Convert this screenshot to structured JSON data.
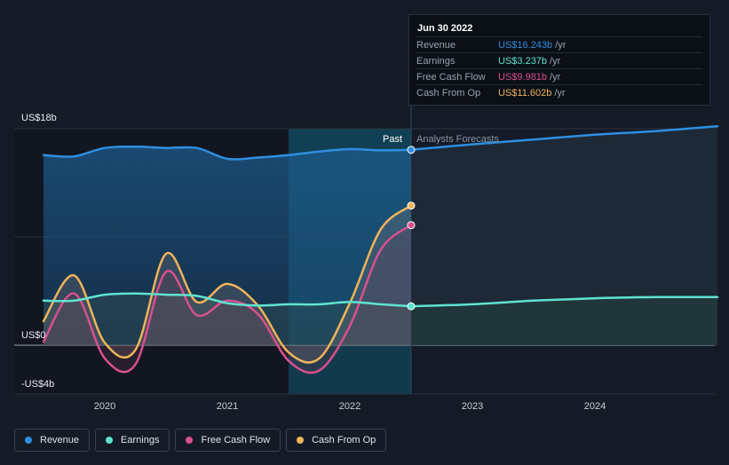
{
  "colors": {
    "revenue": "#2e8fe0",
    "earnings": "#5fe3d0",
    "free_cash_flow": "#d9508f",
    "cash_from_op": "#f0b45a",
    "background": "#151b26"
  },
  "tooltip": {
    "date": "Jun 30 2022",
    "rows": [
      {
        "name": "Revenue",
        "value": "US$16.243b",
        "unit": "/yr",
        "color": "#2e8fe0"
      },
      {
        "name": "Earnings",
        "value": "US$3.237b",
        "unit": "/yr",
        "color": "#5fe3d0"
      },
      {
        "name": "Free Cash Flow",
        "value": "US$9.981b",
        "unit": "/yr",
        "color": "#d9508f"
      },
      {
        "name": "Cash From Op",
        "value": "US$11.602b",
        "unit": "/yr",
        "color": "#f0b45a"
      }
    ]
  },
  "legend": [
    {
      "label": "Revenue",
      "color": "#2e8fe0"
    },
    {
      "label": "Earnings",
      "color": "#5fe3d0"
    },
    {
      "label": "Free Cash Flow",
      "color": "#d9508f"
    },
    {
      "label": "Cash From Op",
      "color": "#f0b45a"
    }
  ],
  "chart_data": {
    "type": "line",
    "y_tick_labels": [
      "US$18b",
      "US$0",
      "-US$4b"
    ],
    "ylim": [
      -4,
      18
    ],
    "xlim": [
      2019.5,
      2025
    ],
    "x_tick_labels": [
      "2020",
      "2021",
      "2022",
      "2023",
      "2024"
    ],
    "x_ticks": [
      2020,
      2021,
      2022,
      2023,
      2024
    ],
    "past_label": "Past",
    "forecast_label": "Analysts Forecasts",
    "divider_x": 2022.5,
    "highlight_range": [
      2021.5,
      2022.5
    ],
    "grid": "horizontal",
    "series": [
      {
        "name": "Revenue",
        "key": "revenue",
        "points": [
          [
            2019.5,
            15.8
          ],
          [
            2019.75,
            15.7
          ],
          [
            2020.0,
            16.4
          ],
          [
            2020.25,
            16.5
          ],
          [
            2020.5,
            16.4
          ],
          [
            2020.75,
            16.4
          ],
          [
            2021.0,
            15.5
          ],
          [
            2021.25,
            15.6
          ],
          [
            2021.5,
            15.8
          ],
          [
            2021.75,
            16.1
          ],
          [
            2022.0,
            16.3
          ],
          [
            2022.25,
            16.2
          ],
          [
            2022.5,
            16.243
          ]
        ],
        "forecast": [
          [
            2022.5,
            16.243
          ],
          [
            2023.0,
            16.7
          ],
          [
            2023.5,
            17.1
          ],
          [
            2024.0,
            17.5
          ],
          [
            2024.5,
            17.8
          ],
          [
            2025.0,
            18.2
          ]
        ]
      },
      {
        "name": "Earnings",
        "key": "earnings",
        "points": [
          [
            2019.5,
            3.7
          ],
          [
            2019.75,
            3.7
          ],
          [
            2020.0,
            4.2
          ],
          [
            2020.25,
            4.3
          ],
          [
            2020.5,
            4.2
          ],
          [
            2020.75,
            4.1
          ],
          [
            2021.0,
            3.5
          ],
          [
            2021.25,
            3.3
          ],
          [
            2021.5,
            3.4
          ],
          [
            2021.75,
            3.4
          ],
          [
            2022.0,
            3.6
          ],
          [
            2022.25,
            3.4
          ],
          [
            2022.5,
            3.237
          ]
        ],
        "forecast": [
          [
            2022.5,
            3.237
          ],
          [
            2023.0,
            3.4
          ],
          [
            2023.5,
            3.7
          ],
          [
            2024.0,
            3.9
          ],
          [
            2024.5,
            4.0
          ],
          [
            2025.0,
            4.0
          ]
        ]
      },
      {
        "name": "Free Cash Flow",
        "key": "free_cash_flow",
        "points": [
          [
            2019.5,
            0.3
          ],
          [
            2019.75,
            4.3
          ],
          [
            2020.0,
            -1.1
          ],
          [
            2020.25,
            -1.6
          ],
          [
            2020.5,
            6.1
          ],
          [
            2020.75,
            2.5
          ],
          [
            2021.0,
            3.7
          ],
          [
            2021.25,
            2.6
          ],
          [
            2021.5,
            -1.3
          ],
          [
            2021.75,
            -2.1
          ],
          [
            2022.0,
            1.6
          ],
          [
            2022.25,
            7.9
          ],
          [
            2022.5,
            9.981
          ]
        ]
      },
      {
        "name": "Cash From Op",
        "key": "cash_from_op",
        "points": [
          [
            2019.5,
            2.0
          ],
          [
            2019.75,
            5.8
          ],
          [
            2020.0,
            0.2
          ],
          [
            2020.25,
            -0.4
          ],
          [
            2020.5,
            7.6
          ],
          [
            2020.75,
            3.6
          ],
          [
            2021.0,
            5.1
          ],
          [
            2021.25,
            3.3
          ],
          [
            2021.5,
            -0.6
          ],
          [
            2021.75,
            -1.1
          ],
          [
            2022.0,
            3.5
          ],
          [
            2022.25,
            9.6
          ],
          [
            2022.5,
            11.602
          ]
        ]
      }
    ]
  }
}
